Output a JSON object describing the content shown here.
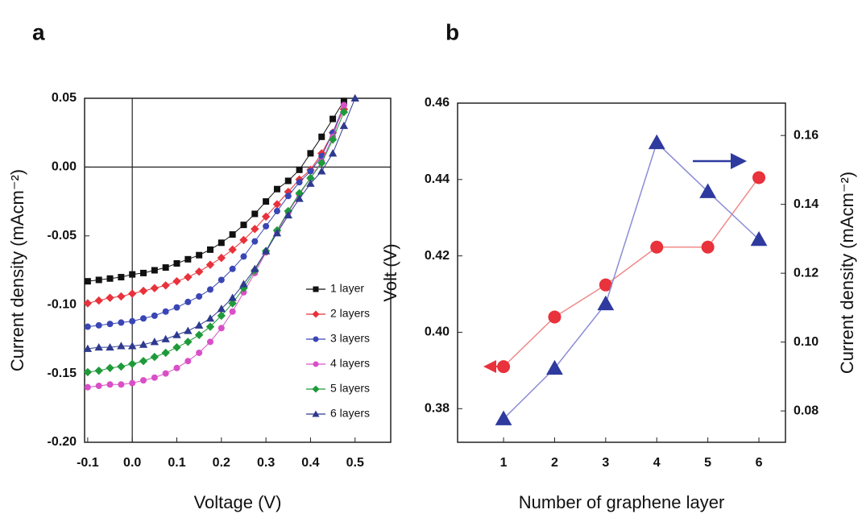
{
  "chart_data": [
    {
      "type": "line",
      "panel_label": "a",
      "x_label": "Voltage (V)",
      "y_label": "Current density (mAcm⁻²)",
      "x": [
        -0.1,
        -0.075,
        -0.05,
        -0.025,
        0,
        0.025,
        0.05,
        0.075,
        0.1,
        0.125,
        0.15,
        0.175,
        0.2,
        0.225,
        0.25,
        0.275,
        0.3,
        0.325,
        0.35,
        0.375,
        0.4,
        0.425,
        0.45,
        0.475,
        0.5
      ],
      "series": [
        {
          "name": "1 layer",
          "color": "#111111",
          "marker": "square",
          "values": [
            -0.083,
            -0.082,
            -0.081,
            -0.08,
            -0.078,
            -0.077,
            -0.075,
            -0.073,
            -0.07,
            -0.067,
            -0.064,
            -0.06,
            -0.055,
            -0.049,
            -0.042,
            -0.034,
            -0.025,
            -0.016,
            -0.01,
            -0.002,
            0.01,
            0.022,
            0.035,
            0.048,
            null
          ]
        },
        {
          "name": "2 layers",
          "color": "#e8323c",
          "marker": "diamond",
          "values": [
            -0.099,
            -0.097,
            -0.095,
            -0.094,
            -0.092,
            -0.09,
            -0.088,
            -0.086,
            -0.083,
            -0.08,
            -0.076,
            -0.071,
            -0.066,
            -0.06,
            -0.053,
            -0.045,
            -0.036,
            -0.027,
            -0.018,
            -0.009,
            -0.002,
            0.01,
            0.025,
            0.042,
            null
          ]
        },
        {
          "name": "3 layers",
          "color": "#3a46b4",
          "marker": "circle",
          "values": [
            -0.116,
            -0.115,
            -0.114,
            -0.113,
            -0.112,
            -0.11,
            -0.108,
            -0.105,
            -0.102,
            -0.098,
            -0.094,
            -0.089,
            -0.082,
            -0.074,
            -0.065,
            -0.054,
            -0.043,
            -0.032,
            -0.021,
            -0.011,
            -0.003,
            0.008,
            0.025,
            0.045,
            null
          ]
        },
        {
          "name": "4 layers",
          "color": "#d94fc8",
          "marker": "circle",
          "values": [
            -0.16,
            -0.159,
            -0.158,
            -0.158,
            -0.157,
            -0.155,
            -0.153,
            -0.15,
            -0.146,
            -0.141,
            -0.135,
            -0.127,
            -0.117,
            -0.105,
            -0.091,
            -0.077,
            -0.062,
            -0.047,
            -0.033,
            -0.02,
            -0.008,
            0.004,
            0.022,
            0.045,
            null
          ]
        },
        {
          "name": "5 layers",
          "color": "#1f9a3a",
          "marker": "diamond",
          "values": [
            -0.149,
            -0.148,
            -0.146,
            -0.145,
            -0.143,
            -0.141,
            -0.138,
            -0.135,
            -0.131,
            -0.127,
            -0.122,
            -0.116,
            -0.108,
            -0.099,
            -0.088,
            -0.075,
            -0.061,
            -0.046,
            -0.032,
            -0.019,
            -0.008,
            0.003,
            0.02,
            0.04,
            null
          ]
        },
        {
          "name": "6 layers",
          "color": "#2e3a8e",
          "marker": "triangle",
          "values": [
            -0.132,
            -0.131,
            -0.131,
            -0.13,
            -0.13,
            -0.129,
            -0.127,
            -0.125,
            -0.122,
            -0.119,
            -0.115,
            -0.11,
            -0.103,
            -0.095,
            -0.085,
            -0.074,
            -0.061,
            -0.048,
            -0.035,
            -0.023,
            -0.012,
            -0.003,
            0.01,
            0.03,
            0.05
          ]
        }
      ],
      "xlim": [
        -0.107,
        0.58
      ],
      "ylim": [
        -0.2,
        0.05
      ],
      "xticks": [
        -0.1,
        {
          "value": 0,
          "label": "0.0"
        },
        0.1,
        0.2,
        0.3,
        0.4,
        0.5
      ],
      "yticks": [
        0.05,
        {
          "value": 0,
          "label": "0.00"
        },
        -0.05,
        {
          "value": -0.1,
          "label": "-0.10"
        },
        -0.15,
        {
          "value": -0.2,
          "label": "-0.20"
        }
      ],
      "zero_lines": true,
      "legend": "lower right"
    },
    {
      "type": "line",
      "panel_label": "b",
      "x_label": "Number of graphene layer",
      "y_label": "Volt (V)",
      "y2_label": "Current density (mAcm⁻²)",
      "x": [
        1,
        2,
        3,
        4,
        5,
        6
      ],
      "series": [
        {
          "name": "Volt",
          "color": "#e8323c",
          "line_color": "#f08a8a",
          "marker": "circle",
          "axis": "y",
          "values": [
            0.391,
            0.404,
            0.4124,
            0.4223,
            0.4223,
            0.4405
          ]
        },
        {
          "name": "Current density",
          "color": "#2e3a9e",
          "line_color": "#8c8cd6",
          "marker": "triangle",
          "axis": "y2",
          "values": [
            0.0777,
            0.0924,
            0.1111,
            0.1579,
            0.1437,
            0.1298
          ]
        }
      ],
      "xlim": [
        0.1,
        6.52
      ],
      "ylim": [
        0.3712,
        0.46
      ],
      "y2lim": [
        0.0709,
        0.1694
      ],
      "xticks": [
        1,
        2,
        3,
        4,
        5,
        6
      ],
      "yticks": [
        0.46,
        0.44,
        0.42,
        {
          "value": 0.4,
          "label": "0.40"
        },
        0.38
      ],
      "y2ticks": [
        0.16,
        0.14,
        0.12,
        {
          "value": 0.1,
          "label": "0.10"
        },
        0.08
      ]
    }
  ]
}
